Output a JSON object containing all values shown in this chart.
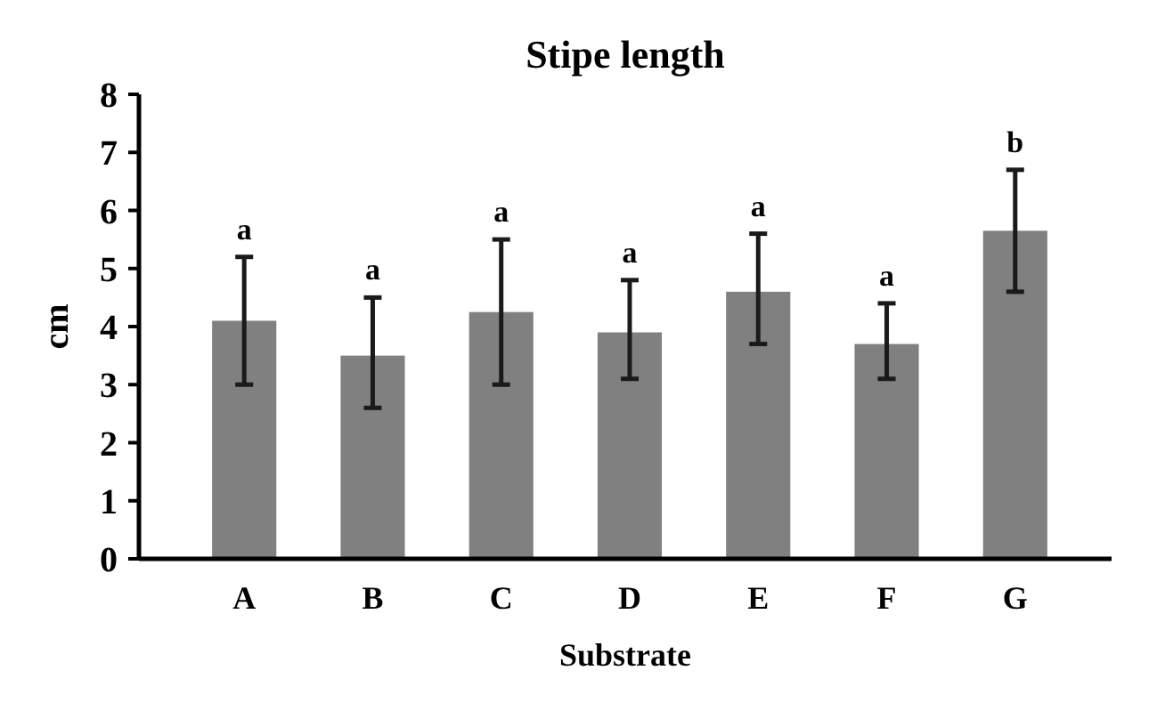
{
  "chart_data": {
    "type": "bar",
    "title": "Stipe length",
    "xlabel": "Substrate",
    "ylabel": "cm",
    "categories": [
      "A",
      "B",
      "C",
      "D",
      "E",
      "F",
      "G"
    ],
    "values": [
      4.1,
      3.5,
      4.25,
      3.9,
      4.6,
      3.7,
      5.65
    ],
    "errors": [
      [
        3.0,
        5.2
      ],
      [
        2.6,
        4.5
      ],
      [
        3.0,
        5.5
      ],
      [
        3.1,
        4.8
      ],
      [
        3.7,
        5.6
      ],
      [
        3.1,
        4.4
      ],
      [
        4.6,
        6.7
      ]
    ],
    "color": "#808080",
    "ylim": [
      0,
      8
    ],
    "yticks": [
      0,
      1,
      2,
      3,
      4,
      5,
      6,
      7,
      8
    ],
    "grid": false,
    "annotations": [
      {
        "text": "a",
        "x": "A",
        "y": 5.2
      },
      {
        "text": "a",
        "x": "B",
        "y": 4.5
      },
      {
        "text": "a",
        "x": "C",
        "y": 5.5
      },
      {
        "text": "a",
        "x": "D",
        "y": 4.8
      },
      {
        "text": "a",
        "x": "E",
        "y": 5.6
      },
      {
        "text": "a",
        "x": "F",
        "y": 4.4
      },
      {
        "text": "b",
        "x": "G",
        "y": 6.7
      }
    ]
  }
}
